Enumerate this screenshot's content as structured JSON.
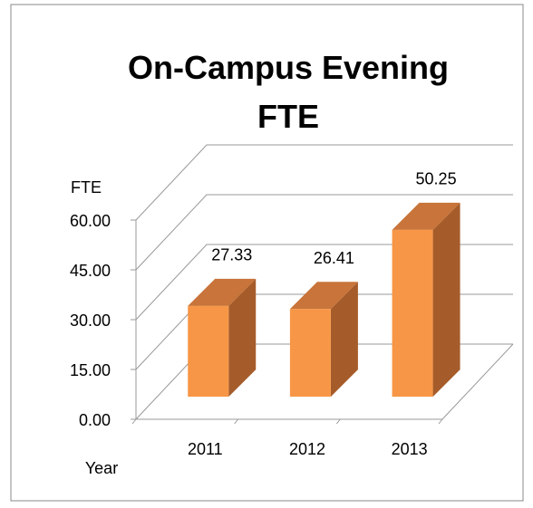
{
  "chart_data": {
    "type": "bar3d",
    "title": "On-Campus Evening FTE",
    "y_label": "FTE",
    "x_label": "Year",
    "categories": [
      "2011",
      "2012",
      "2013"
    ],
    "values": [
      27.33,
      26.41,
      50.25
    ],
    "color": "#f79646",
    "ylim": [
      0,
      60
    ],
    "yticks": [
      {
        "value": 0,
        "label": "0.00"
      },
      {
        "value": 15,
        "label": "15.00"
      },
      {
        "value": 30,
        "label": "30.00"
      },
      {
        "value": 45,
        "label": "45.00"
      },
      {
        "value": 60,
        "label": "60.00"
      }
    ],
    "grid": true
  }
}
